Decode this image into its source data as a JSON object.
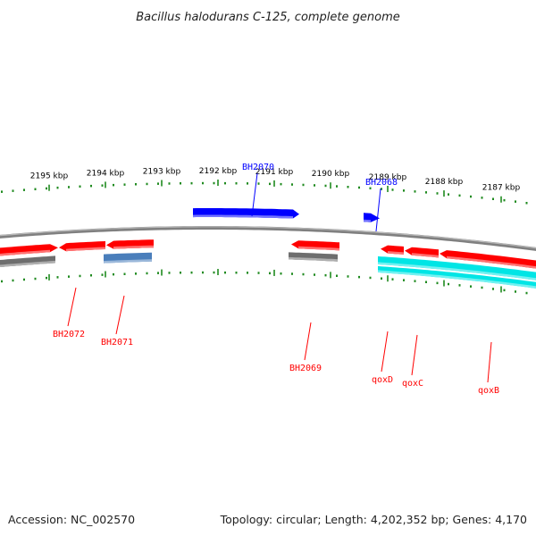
{
  "title": "Bacillus halodurans C-125, complete genome",
  "accession": "Accession: NC_002570",
  "topology": "Topology: circular; Length: 4,202,352 bp; Genes: 4,170",
  "colors": {
    "backbone": "#808080",
    "tick": "#1f8a1f",
    "plus_gene": "#0000ff",
    "minus_gene": "#ff0000",
    "operon": "#00e5e5",
    "pseudo": "#6e6e6e",
    "highlight": "#4a7ebb"
  },
  "ticks": [
    {
      "label": "2195 kbp"
    },
    {
      "label": "2194 kbp"
    },
    {
      "label": "2193 kbp"
    },
    {
      "label": "2192 kbp"
    },
    {
      "label": "2191 kbp"
    },
    {
      "label": "2190 kbp"
    },
    {
      "label": "2189 kbp"
    },
    {
      "label": "2188 kbp"
    },
    {
      "label": "2187 kbp"
    }
  ],
  "genes": [
    {
      "label": "BH2070",
      "strand": "+"
    },
    {
      "label": "BH2068",
      "strand": "+"
    },
    {
      "label": "BH2072",
      "strand": "-"
    },
    {
      "label": "BH2071",
      "strand": "-"
    },
    {
      "label": "BH2069",
      "strand": "-"
    },
    {
      "label": "qoxD",
      "strand": "-"
    },
    {
      "label": "qoxC",
      "strand": "-"
    },
    {
      "label": "qoxB",
      "strand": "-"
    }
  ]
}
